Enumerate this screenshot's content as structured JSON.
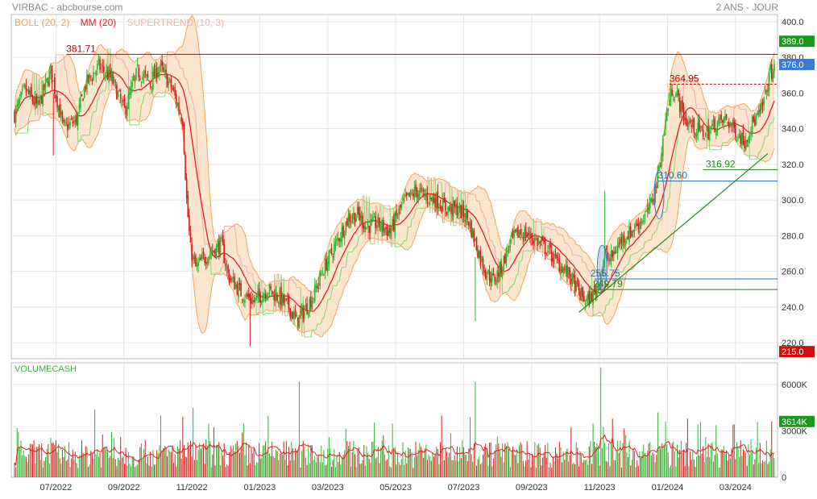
{
  "header": {
    "left_title": "VIRBAC - abcbourse.com",
    "right_title": "2 ANS - JOUR"
  },
  "indicators": {
    "boll": "BOLL (20, 2)",
    "mm": "MM (20)",
    "supertrend": "SUPERTREND (10, 3)",
    "volume": "VOLUMECASH"
  },
  "colors": {
    "up": "#2fb52f",
    "down": "#d62020",
    "boll_fill": "#fbdcbe",
    "boll_line": "#f4a65a",
    "mm": "#e02020",
    "supertrend_up": "#7ddc6a",
    "supertrend_down": "#f5a9a9",
    "resistance": "#c00000",
    "support": "#1f6fb5",
    "trend": "#1c8a1c",
    "tag_red": "#cc1111",
    "tag_blue": "#3a7bd5",
    "tag_green": "#1a9a1a"
  },
  "chart_data": [
    {
      "type": "candlestick",
      "x_tick_labels": [
        "07/2022",
        "09/2022",
        "11/2022",
        "01/2023",
        "03/2023",
        "05/2023",
        "07/2023",
        "09/2023",
        "11/2023",
        "01/2024",
        "03/2024"
      ],
      "y_ticks": [
        220,
        240,
        260,
        280,
        300,
        320,
        340,
        360,
        380,
        400
      ],
      "y_tick_labels": [
        "220.0",
        "240.0",
        "260.0",
        "280.0",
        "300.0",
        "320.0",
        "340.0",
        "360.0",
        "380.0",
        "400.0"
      ],
      "ylim": [
        211,
        404
      ],
      "price_tags": [
        {
          "label": "389.0",
          "value": 389.0,
          "color": "#1a9a1a"
        },
        {
          "label": "376.0",
          "value": 376.0,
          "color": "#3a7bd5"
        },
        {
          "label": "215.0",
          "value": 215.0,
          "color": "#cc1111"
        }
      ],
      "annotations": [
        {
          "label": "381.71",
          "value": 381.71,
          "color": "#c00000"
        },
        {
          "label": "364.95",
          "value": 364.95,
          "color": "#c00000"
        },
        {
          "label": "310.60",
          "value": 310.6,
          "color": "#1f6fb5"
        },
        {
          "label": "316.92",
          "value": 316.92,
          "color": "#1c8a1c"
        },
        {
          "label": "255.75",
          "value": 255.75,
          "color": "#1f6fb5"
        },
        {
          "label": "249.79",
          "value": 249.79,
          "color": "#1c8a1c"
        }
      ],
      "price_path": [
        [
          0,
          348
        ],
        [
          8,
          362
        ],
        [
          18,
          352
        ],
        [
          28,
          372
        ],
        [
          38,
          340
        ],
        [
          48,
          345
        ],
        [
          55,
          365
        ],
        [
          65,
          375
        ],
        [
          75,
          368
        ],
        [
          85,
          350
        ],
        [
          95,
          372
        ],
        [
          105,
          366
        ],
        [
          112,
          375
        ],
        [
          122,
          362
        ],
        [
          130,
          345
        ],
        [
          133,
          300
        ],
        [
          136,
          272
        ],
        [
          140,
          262
        ],
        [
          150,
          270
        ],
        [
          160,
          275
        ],
        [
          165,
          258
        ],
        [
          175,
          248
        ],
        [
          185,
          243
        ],
        [
          195,
          250
        ],
        [
          205,
          245
        ],
        [
          212,
          240
        ],
        [
          218,
          232
        ],
        [
          222,
          236
        ],
        [
          230,
          245
        ],
        [
          238,
          260
        ],
        [
          248,
          275
        ],
        [
          258,
          290
        ],
        [
          265,
          292
        ],
        [
          272,
          285
        ],
        [
          280,
          287
        ],
        [
          290,
          282
        ],
        [
          300,
          298
        ],
        [
          310,
          305
        ],
        [
          318,
          302
        ],
        [
          326,
          300
        ],
        [
          334,
          295
        ],
        [
          342,
          295
        ],
        [
          350,
          290
        ],
        [
          358,
          272
        ],
        [
          364,
          260
        ],
        [
          370,
          255
        ],
        [
          376,
          262
        ],
        [
          383,
          276
        ],
        [
          390,
          282
        ],
        [
          398,
          280
        ],
        [
          405,
          276
        ],
        [
          412,
          272
        ],
        [
          418,
          266
        ],
        [
          424,
          262
        ],
        [
          430,
          256
        ],
        [
          436,
          248
        ],
        [
          442,
          243
        ],
        [
          448,
          248
        ],
        [
          452,
          255
        ],
        [
          456,
          270
        ],
        [
          460,
          266
        ],
        [
          465,
          273
        ],
        [
          470,
          279
        ],
        [
          476,
          282
        ],
        [
          482,
          287
        ],
        [
          488,
          292
        ],
        [
          492,
          298
        ],
        [
          496,
          310
        ],
        [
          500,
          328
        ],
        [
          504,
          350
        ],
        [
          508,
          362
        ],
        [
          512,
          358
        ],
        [
          518,
          345
        ],
        [
          526,
          340
        ],
        [
          534,
          337
        ],
        [
          542,
          343
        ],
        [
          550,
          345
        ],
        [
          558,
          338
        ],
        [
          564,
          333
        ],
        [
          570,
          343
        ],
        [
          576,
          348
        ],
        [
          580,
          358
        ],
        [
          584,
          372
        ]
      ],
      "spikes": [
        {
          "i": 456,
          "high": 305,
          "low": 262
        },
        {
          "i": 356,
          "high": 268,
          "low": 232
        },
        {
          "i": 30,
          "high": 360,
          "low": 325
        },
        {
          "i": 182,
          "high": 248,
          "low": 218
        }
      ]
    },
    {
      "type": "bar",
      "title": "VOLUMECASH",
      "y_ticks": [
        0,
        3000,
        6000
      ],
      "y_tick_labels": [
        "0",
        "3000K",
        "6000K"
      ],
      "ylim": [
        0,
        7000
      ],
      "last_value": {
        "label": "3614K",
        "value": 3614
      },
      "peaks": [
        {
          "i": 62,
          "v": 4400
        },
        {
          "i": 113,
          "v": 4000
        },
        {
          "i": 130,
          "v": 3900
        },
        {
          "i": 138,
          "v": 4500
        },
        {
          "i": 196,
          "v": 4000
        },
        {
          "i": 220,
          "v": 6200
        },
        {
          "i": 330,
          "v": 4000
        },
        {
          "i": 352,
          "v": 3900
        },
        {
          "i": 356,
          "v": 6200
        },
        {
          "i": 447,
          "v": 3500
        },
        {
          "i": 453,
          "v": 7100
        },
        {
          "i": 462,
          "v": 3800
        },
        {
          "i": 497,
          "v": 4200
        },
        {
          "i": 503,
          "v": 3600
        },
        {
          "i": 520,
          "v": 3800
        },
        {
          "i": 574,
          "v": 3600
        },
        {
          "i": 585,
          "v": 3614
        }
      ]
    }
  ]
}
